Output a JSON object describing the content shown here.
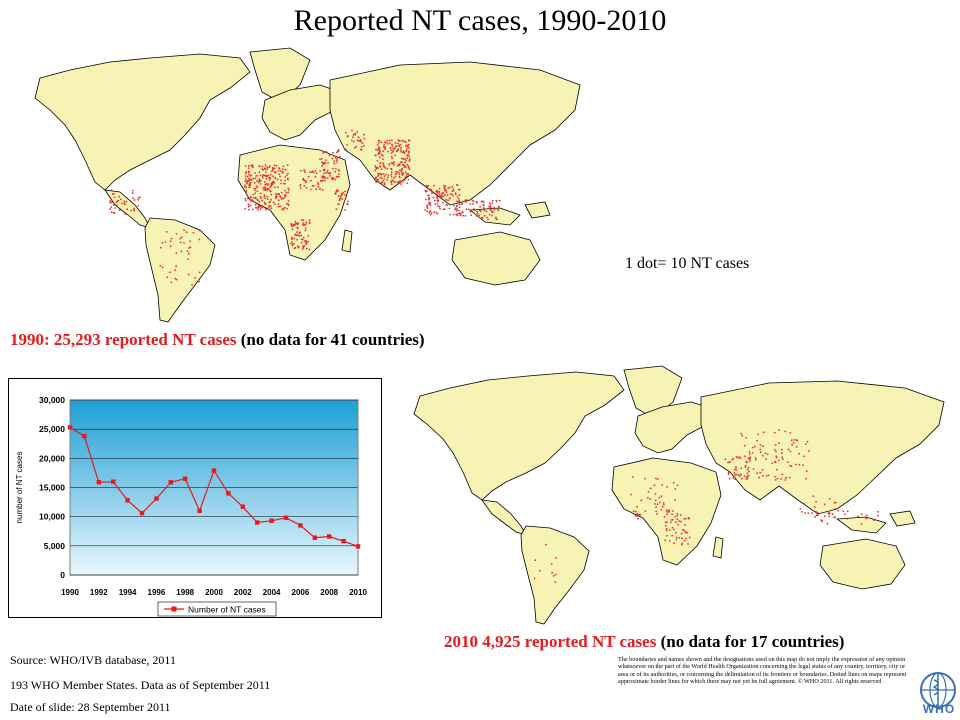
{
  "title": "Reported NT cases, 1990-2010",
  "map_1990": {
    "caption_red": "1990: 25,293 reported NT cases ",
    "caption_black": "(no data for 41 countries)"
  },
  "map_2010": {
    "caption_red": "2010 4,925  reported NT cases ",
    "caption_black": "(no data for 17 countries)"
  },
  "dot_note": "1 dot= 10 NT cases",
  "footer": {
    "source": "Source: WHO/IVB database, 2011",
    "members": "193 WHO Member States. Data as of September 2011",
    "date": "Date of slide: 28 September 2011",
    "disclaimer": "The boundaries and names shown and the designations used on this map do not imply the expression of any opinion whatsoever on the part of the World Health Organization concerning the legal status of any country, territory, city or area or of its authorities, or concerning the delimitation of its frontiers or boundaries. Dotted lines on maps represent approximate border lines for which there may not yet be full agreement. © WHO 2011. All rights reserved",
    "logo_text": "WHO"
  },
  "colors": {
    "land": "#f7f3b5",
    "dot": "#e8312f",
    "chart_bg_top": "#1e9fd6",
    "chart_bg_bottom": "#e9f6fc",
    "series": "#e41a1c"
  },
  "chart_data": {
    "type": "line",
    "ylabel": "number of NT cases",
    "ylim": [
      0,
      30000
    ],
    "yticks": [
      "0",
      "5,000",
      "10,000",
      "15,000",
      "20,000",
      "25,000",
      "30,000"
    ],
    "xticks": [
      "1990",
      "1992",
      "1994",
      "1996",
      "1998",
      "2000",
      "2002",
      "2004",
      "2006",
      "2008",
      "2010"
    ],
    "legend": "top-bottom",
    "series": [
      {
        "name": "Number of NT cases",
        "x": [
          1990,
          1991,
          1992,
          1993,
          1994,
          1995,
          1996,
          1997,
          1998,
          1999,
          2000,
          2001,
          2002,
          2003,
          2004,
          2005,
          2006,
          2007,
          2008,
          2009,
          2010
        ],
        "values": [
          25300,
          23800,
          15900,
          16000,
          12800,
          10600,
          13100,
          15900,
          16500,
          11000,
          17900,
          14000,
          11700,
          9000,
          9300,
          9800,
          8500,
          6400,
          6600,
          5800,
          4900
        ]
      }
    ]
  }
}
